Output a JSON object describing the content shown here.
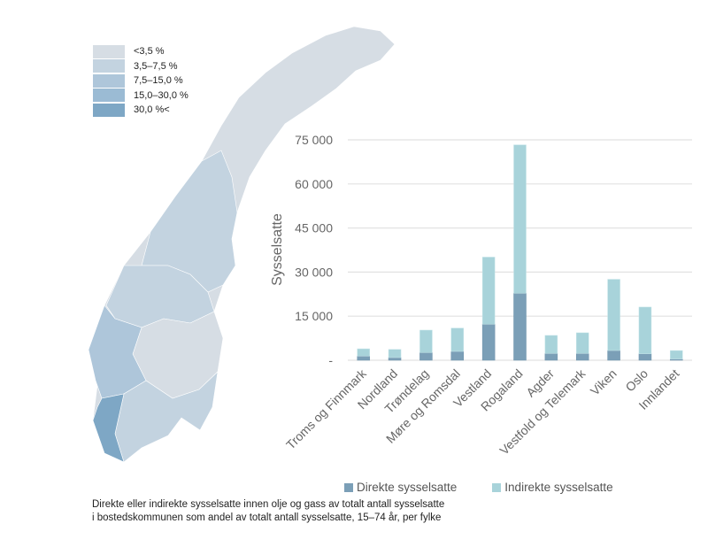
{
  "map_legend": {
    "items": [
      {
        "label": "<3,5 %",
        "color": "#d6dde4"
      },
      {
        "label": "3,5–7,5 %",
        "color": "#c3d3e0"
      },
      {
        "label": "7,5–15,0 %",
        "color": "#aec6da"
      },
      {
        "label": "15,0–30,0 %",
        "color": "#9bbbd4"
      },
      {
        "label": "30,0 %<",
        "color": "#7ea7c5"
      }
    ]
  },
  "caption": "Direkte eller indirekte sysselsatte innen olje og gass av totalt antall sysselsatte i bostedskommunen som andel av totalt antall sysselsatte, 15–74 år, per fylke",
  "chart_data": {
    "type": "bar",
    "stacked": true,
    "ylabel": "Sysselsatte",
    "ylim": [
      0,
      75000
    ],
    "yticks": [
      0,
      15000,
      30000,
      45000,
      60000,
      75000
    ],
    "ytick_labels": [
      "-",
      "15 000",
      "30 000",
      "45 000",
      "60 000",
      "75 000"
    ],
    "grid": true,
    "legend_position": "bottom",
    "categories": [
      "Troms og Finnmark",
      "Nordland",
      "Trøndelag",
      "Møre og Romsdal",
      "Vestland",
      "Rogaland",
      "Agder",
      "Vestfold og Telemark",
      "Viken",
      "Oslo",
      "Innlandet"
    ],
    "series": [
      {
        "name": "Direkte sysselsatte",
        "color": "#7b9fb7",
        "values": [
          1400,
          900,
          2600,
          3000,
          12250,
          22800,
          2300,
          2300,
          3300,
          2200,
          400
        ]
      },
      {
        "name": "Indirekte sysselsatte",
        "color": "#a8d3da",
        "values": [
          2500,
          2800,
          7650,
          7950,
          22850,
          50500,
          6150,
          7050,
          24250,
          15900,
          2900
        ]
      }
    ]
  }
}
